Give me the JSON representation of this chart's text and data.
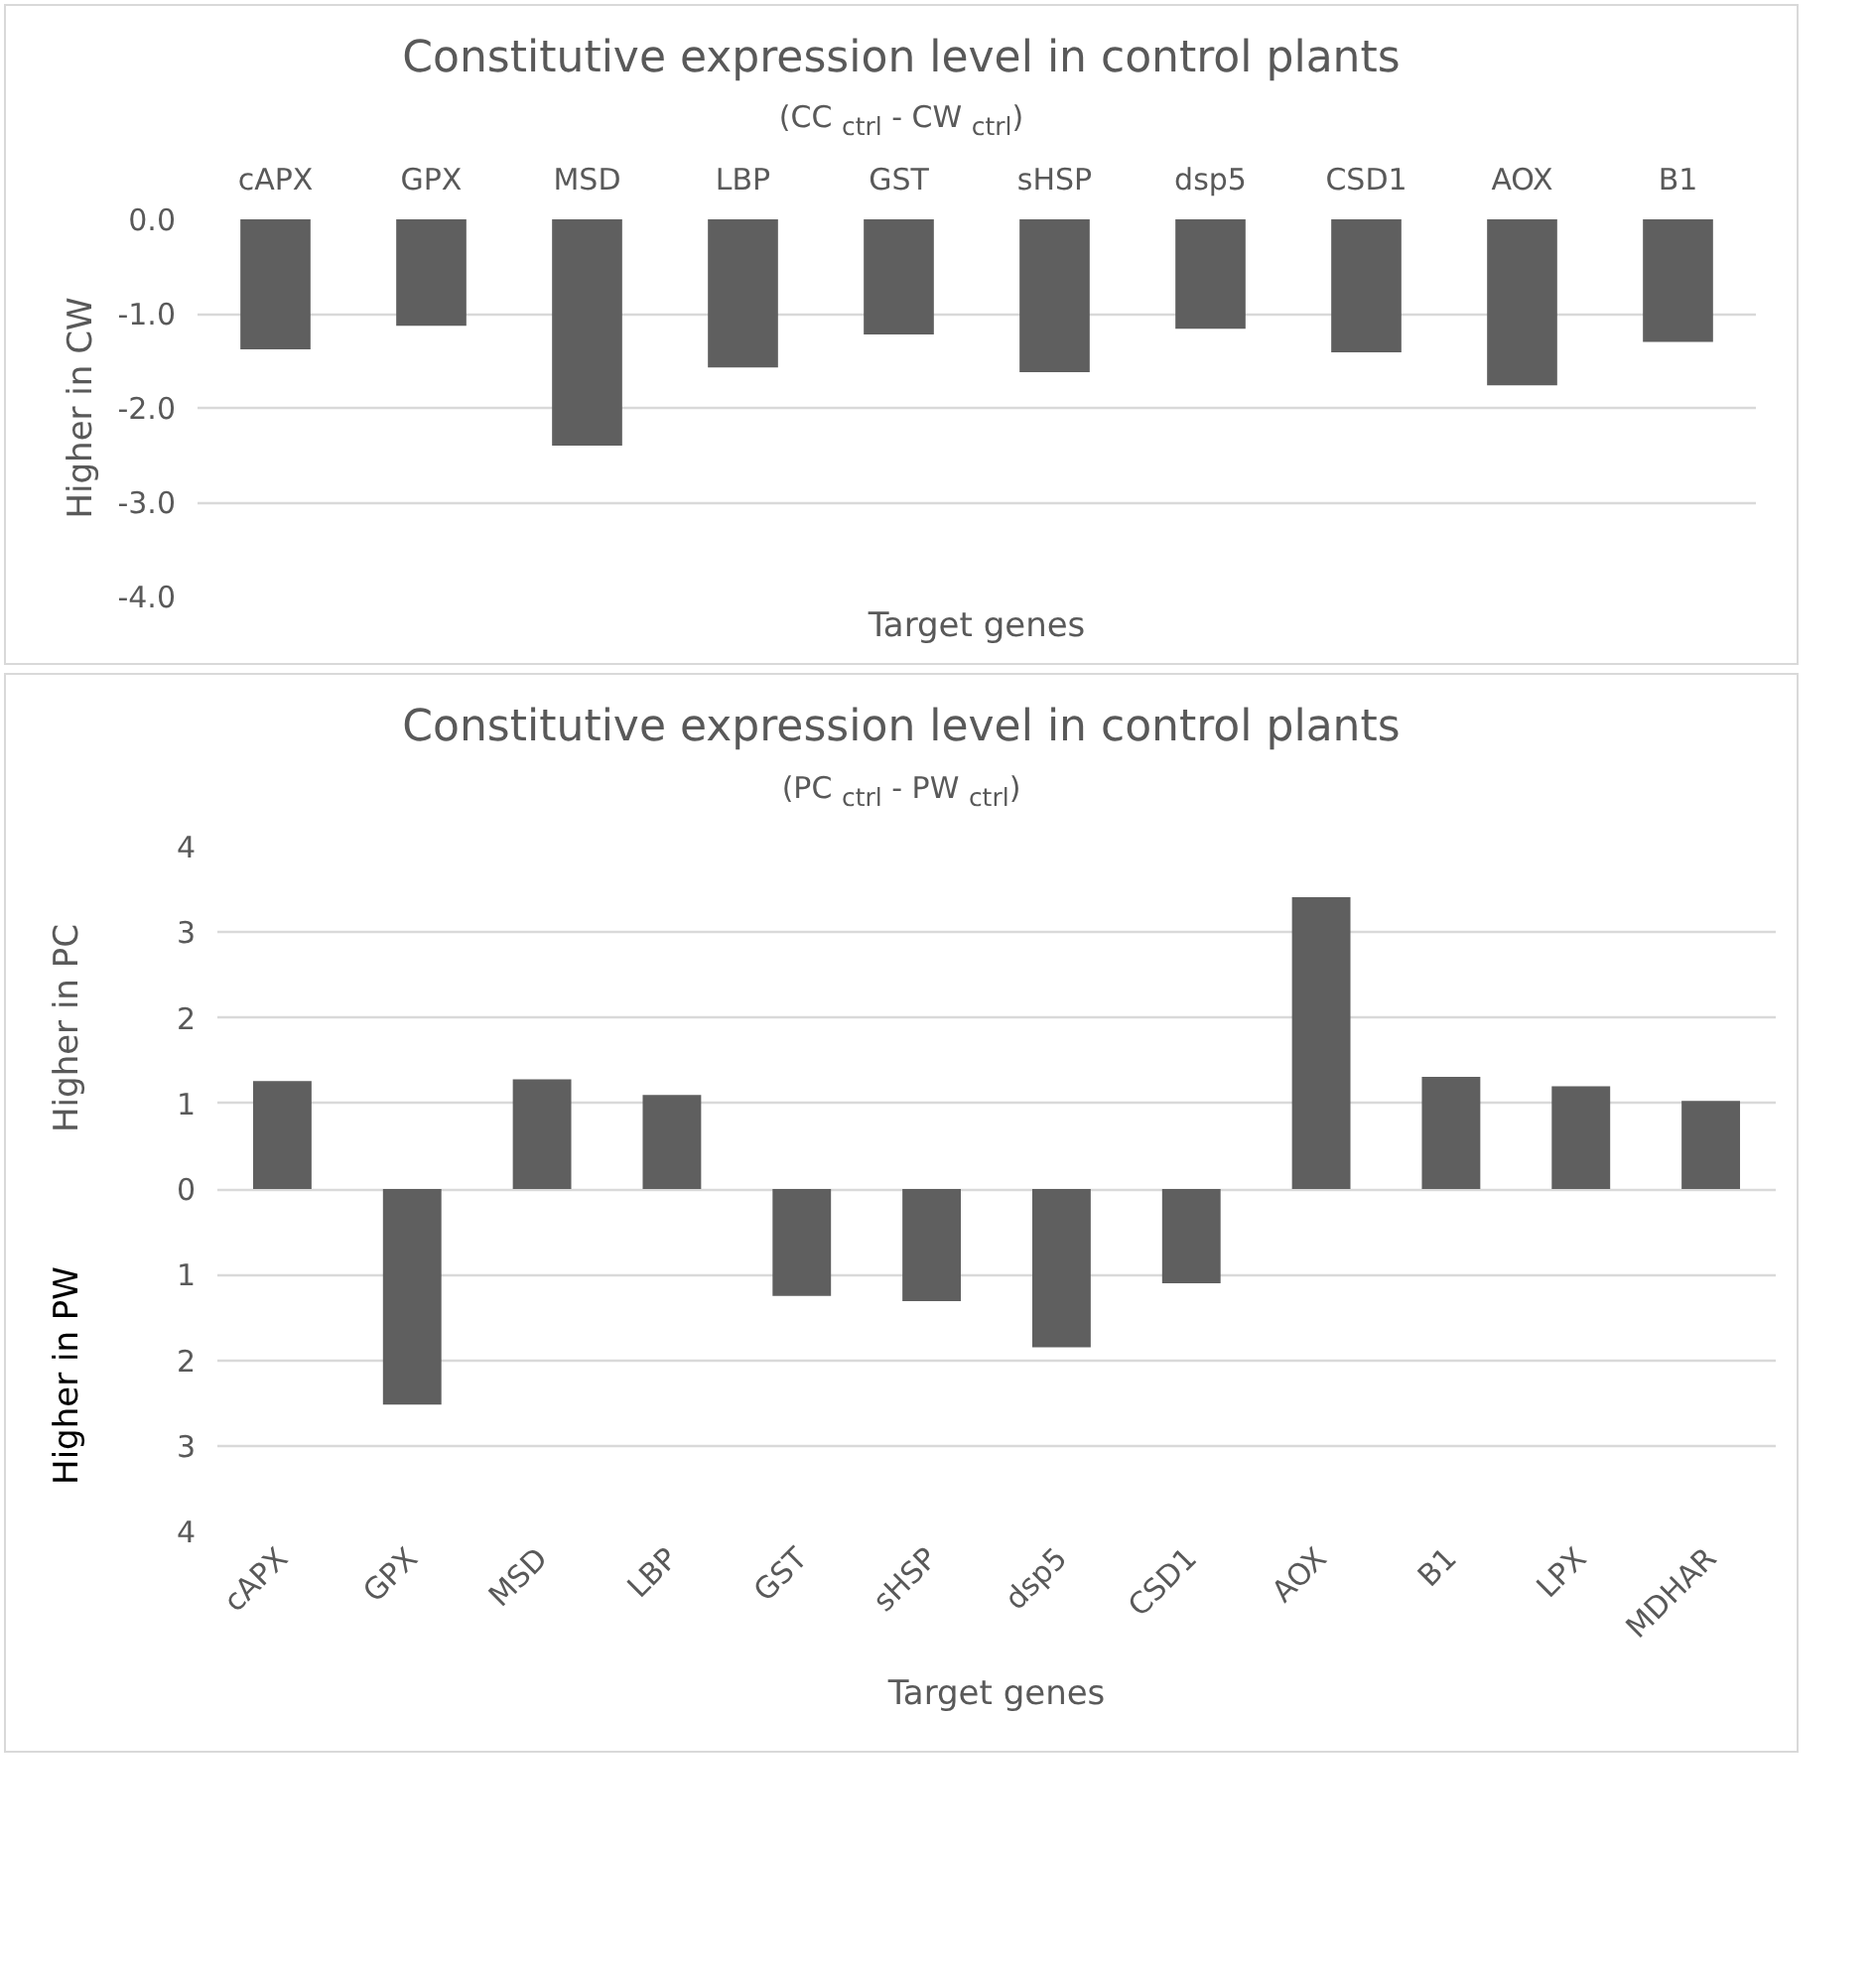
{
  "chart_data": [
    {
      "type": "bar",
      "title": "Constitutive expression level in control plants",
      "subtitle": "(CC $_{ctrl}$ - CW $_{ctrl}$)",
      "xlabel": "Target genes",
      "ylabel": "Higher in CW",
      "categories": [
        "cAPX",
        "GPX",
        "MSD",
        "LBP",
        "GST",
        "sHSP",
        "dsp5",
        "CSD1",
        "AOX",
        "B1"
      ],
      "values": [
        -1.38,
        -1.13,
        -2.4,
        -1.57,
        -1.22,
        -1.62,
        -1.16,
        -1.41,
        -1.76,
        -1.3
      ],
      "color": "#5f5f5f",
      "ylim": [
        -4,
        0
      ],
      "yticks": [
        {
          "value": 0,
          "label": "0.0"
        },
        {
          "value": -1,
          "label": "-1.0"
        },
        {
          "value": -2,
          "label": "-2.0"
        },
        {
          "value": -3,
          "label": "-3.0"
        },
        {
          "value": -4,
          "label": "-4.0"
        }
      ],
      "grid": "y"
    },
    {
      "type": "bar",
      "title": "Constitutive expression level in control plants",
      "subtitle": "(PC $_{ctrl}$ - PW $_{ctrl}$)",
      "xlabel": "Target genes",
      "ylabel": "Higher in PC",
      "annotations": [
        "Higher in PW"
      ],
      "categories": [
        "cAPX",
        "GPX",
        "MSD",
        "LBP",
        "GST",
        "sHSP",
        "dsp5",
        "CSD1",
        "AOX",
        "B1",
        "LPX",
        "MDHAR"
      ],
      "values": [
        1.26,
        -2.52,
        1.28,
        1.1,
        -1.25,
        -1.31,
        -1.85,
        -1.1,
        3.41,
        1.31,
        1.2,
        1.03
      ],
      "color": "#5f5f5f",
      "ylim": [
        -4,
        4
      ],
      "yticks": [
        {
          "value": 4,
          "label": "4"
        },
        {
          "value": 3,
          "label": "3"
        },
        {
          "value": 2,
          "label": "2"
        },
        {
          "value": 1,
          "label": "1"
        },
        {
          "value": 0,
          "label": "0"
        },
        {
          "value": -1,
          "label": "1"
        },
        {
          "value": -2,
          "label": "2"
        },
        {
          "value": -3,
          "label": "3"
        },
        {
          "value": -4,
          "label": "4"
        }
      ],
      "grid": "y"
    }
  ]
}
